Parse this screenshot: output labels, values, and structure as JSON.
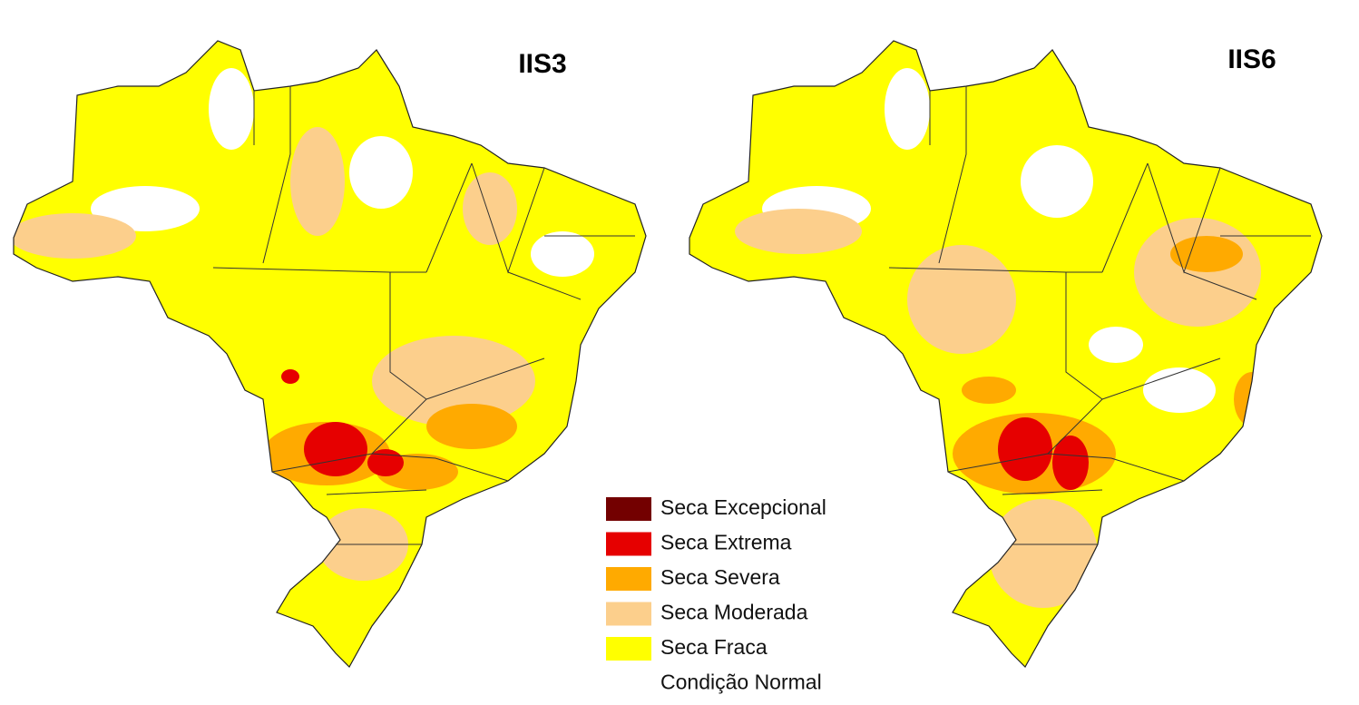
{
  "maps": [
    {
      "title": "IIS3"
    },
    {
      "title": "IIS6"
    }
  ],
  "legend": [
    {
      "label": "Seca Excepcional",
      "color": "#730000"
    },
    {
      "label": "Seca Extrema",
      "color": "#e60000"
    },
    {
      "label": "Seca Severa",
      "color": "#ffaa00"
    },
    {
      "label": "Seca Moderada",
      "color": "#fccf8c"
    },
    {
      "label": "Seca Fraca",
      "color": "#ffff00"
    },
    {
      "label": "Condição Normal",
      "color": "#ffffff"
    }
  ]
}
